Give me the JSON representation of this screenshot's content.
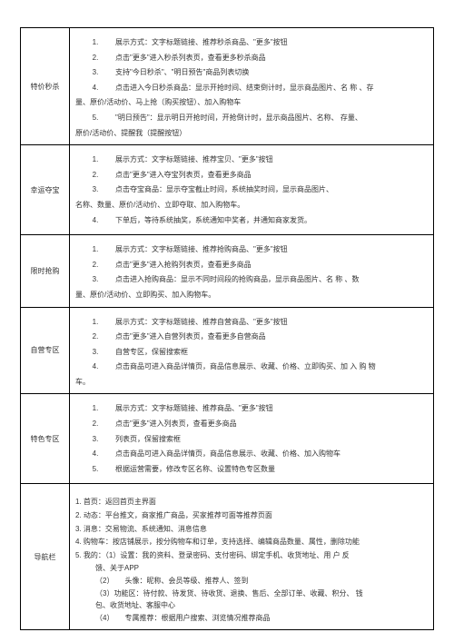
{
  "rows": [
    {
      "label": "特价秒杀",
      "items": [
        {
          "n": "1.",
          "t": "展示方式：文字标题链接、推荐秒杀商品、\"更多\"按钮"
        },
        {
          "n": "2.",
          "t": "点击\"更多\"进入秒杀列表页，查看更多秒杀商品"
        },
        {
          "n": "3.",
          "t": "支持\"今日秒杀\"、\"明日预告\"商品列表切换"
        },
        {
          "n": "4.",
          "t": "点击进入今日秒杀商品：显示开抢时间、结束倒计时，显示商品图片、名 称 、存"
        }
      ],
      "tail1": "量、原价/活动价、马上抢（购买按钮）、加入购物车",
      "items2": [
        {
          "n": "5.",
          "t": "\"明日预告\"：显示明日开抢时间，开抢倒计时，显示商品图片、名称、 存量、"
        }
      ],
      "tail2": "原价/活动价、提醒我（提醒按钮）"
    },
    {
      "label": "幸运夺宝",
      "items": [
        {
          "n": "1.",
          "t": "展示方式：文字标题链接、推荐宝贝、\"更多\"按钮"
        },
        {
          "n": "2.",
          "t": "点击\"更多\"进入夺宝列表页，查看更多商品"
        },
        {
          "n": "3.",
          "t": "点击夺宝商品：显示夺宝截止时间，系统抽奖时间，显示商品图片、"
        }
      ],
      "tail1": "名称、数量、原价/活动价、立即夺取、加入购物车。",
      "items2": [
        {
          "n": "4.",
          "t": "下单后，等待系统抽奖，系统通知中奖者，并通知商家发货。"
        }
      ]
    },
    {
      "label": "限时抢购",
      "items": [
        {
          "n": "1.",
          "t": "展示方式：文字标题链接、推荐抢购商品、\"更多\"按钮"
        },
        {
          "n": "2.",
          "t": "点击\"更多\"进入抢购列表页，查看更多商品"
        },
        {
          "n": "3.",
          "t": "点击进入抢购商品：显示不同时间段的抢购商品，显示商品图片、名 称 、数"
        }
      ],
      "tail1": "量、原价/活动价、立即购买、加入购物车。"
    },
    {
      "label": "自营专区",
      "outdent": true,
      "items": [
        {
          "n": "1.",
          "t": "展示方式：文字标题链接、推荐自营商品、\"更多\"按钮"
        },
        {
          "n": "2.",
          "t": "点击\"更多\"进入自营列表页，查看更多自营商品"
        },
        {
          "n": "3.",
          "t": "自营专区，保留搜索框"
        },
        {
          "n": "4.",
          "t": "点击商品可进入商品详情页，商品信息展示、收藏、价格、立即购买、加 入 购 物"
        }
      ],
      "tail1": "车。"
    },
    {
      "label": "特色专区",
      "items": [
        {
          "n": "1.",
          "t": "展示方式：文字标题链接、推荐商品、\"更多\"按钮"
        },
        {
          "n": "2.",
          "t": "点击\"更多\"进入列表页，查看更多商品"
        },
        {
          "n": "3.",
          "t": "列表页，保留搜索框"
        },
        {
          "n": "4.",
          "t": "点击商品可进入商品详情页，商品信息展示、收藏、价格、加入购物车"
        },
        {
          "n": "5.",
          "t": "根据运营需要，修改专区名称、设置特色专区数量"
        }
      ]
    }
  ],
  "nav": {
    "label": "导航栏",
    "lines": [
      "1. 首页：返回首页主界面",
      "2. 动态：平台推文，商家推广商品，买家推荐可面等推荐页面",
      "3. 消息：交易物流、系统通知、消息信息",
      "4. 购物车：按店铺展示，按分购物车和订单，支持选择、编辑商品数量、属性，删除功能",
      "5. 我的：（1）设置：我的资料、登录密码、支付密码、绑定手机、收货地址、用 户 反"
    ],
    "sublines": [
      "馈、关于APP",
      "（2）　　头像：昵称、会员等级、推荐人、签到",
      "（3）功能区：待付款、待发货、待收货、退换、售后、全部订单、收藏、积分、 钱",
      "包、收货地址、客服中心",
      "（4）　　专属推荐：根据用户搜索、浏览情况推荐商品"
    ]
  }
}
